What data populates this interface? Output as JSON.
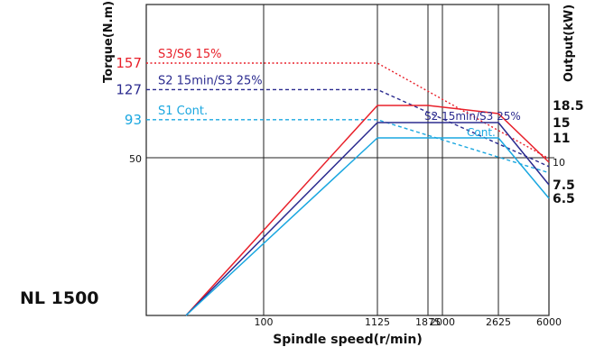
{
  "model_label": "NL 1500",
  "chart_data": {
    "type": "line",
    "title": "",
    "xlabel": "Spindle speed(r/min)",
    "ylabel_left": "Torque(N.m)",
    "ylabel_right": "Output(kW)",
    "x_ticks": [
      100,
      1125,
      1875,
      2000,
      2625,
      6000
    ],
    "left_ticks": [
      157,
      127,
      93,
      50
    ],
    "right_ticks": [
      18.5,
      15,
      11,
      10,
      7.5,
      6.5
    ],
    "grid": true,
    "colors": {
      "red": "#e8202a",
      "navy": "#2b2b8f",
      "cyan": "#1aa7e0"
    },
    "torque_series": [
      {
        "name": "S3/S6 15%",
        "color": "red",
        "value": 157,
        "points": [
          [
            0,
            157
          ],
          [
            1125,
            157
          ],
          [
            6000,
            49
          ]
        ]
      },
      {
        "name": "S2 15min/S3 25%",
        "color": "navy",
        "value": 127,
        "points": [
          [
            0,
            127
          ],
          [
            1125,
            127
          ],
          [
            6000,
            40
          ]
        ]
      },
      {
        "name": "S1 Cont.",
        "color": "cyan",
        "value": 93,
        "points": [
          [
            0,
            93
          ],
          [
            1125,
            93
          ],
          [
            6000,
            33
          ]
        ]
      }
    ],
    "output_series": [
      {
        "name": "",
        "color": "red",
        "points": [
          [
            0,
            0
          ],
          [
            1125,
            18.5
          ],
          [
            1875,
            18.5
          ],
          [
            2625,
            16.5
          ],
          [
            6000,
            10
          ]
        ]
      },
      {
        "name": "S2 15min/S3 25%",
        "color": "navy",
        "points": [
          [
            0,
            0
          ],
          [
            1125,
            15
          ],
          [
            2625,
            15
          ],
          [
            6000,
            7.5
          ]
        ]
      },
      {
        "name": "Cont.",
        "color": "cyan",
        "points": [
          [
            0,
            0
          ],
          [
            1125,
            11
          ],
          [
            2625,
            11
          ],
          [
            6000,
            6.5
          ]
        ]
      }
    ]
  }
}
